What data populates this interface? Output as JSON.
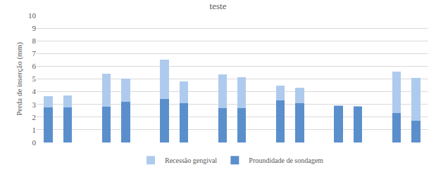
{
  "chart_data": {
    "type": "bar",
    "title": "teste",
    "stacked": true,
    "y_label": "Perda de inserção (mm)",
    "categories": [
      null,
      null,
      null,
      null,
      null,
      null,
      null,
      null,
      null,
      null,
      null,
      null,
      null,
      null,
      null,
      null,
      null,
      null,
      null,
      null
    ],
    "series": [
      {
        "name": "Proundidade de sondagem",
        "color": "#5b8fcc",
        "values": [
          2.75,
          2.75,
          null,
          2.8,
          3.2,
          null,
          3.4,
          3.1,
          null,
          2.7,
          2.7,
          null,
          3.3,
          3.1,
          null,
          2.9,
          2.8,
          null,
          2.3,
          1.7
        ]
      },
      {
        "name": "Recessão gengival",
        "color": "#aecbee",
        "values": [
          0.87,
          0.95,
          null,
          2.6,
          1.85,
          null,
          3.1,
          1.7,
          null,
          2.65,
          2.45,
          null,
          1.2,
          1.2,
          null,
          0.05,
          0.1,
          null,
          3.3,
          3.4
        ]
      }
    ],
    "ylim": [
      0,
      10
    ],
    "yticks": [
      0,
      1,
      2,
      3,
      4,
      5,
      6,
      7,
      8,
      9,
      10
    ],
    "grid": true,
    "legend": "bottom",
    "tick_labels": "y"
  }
}
